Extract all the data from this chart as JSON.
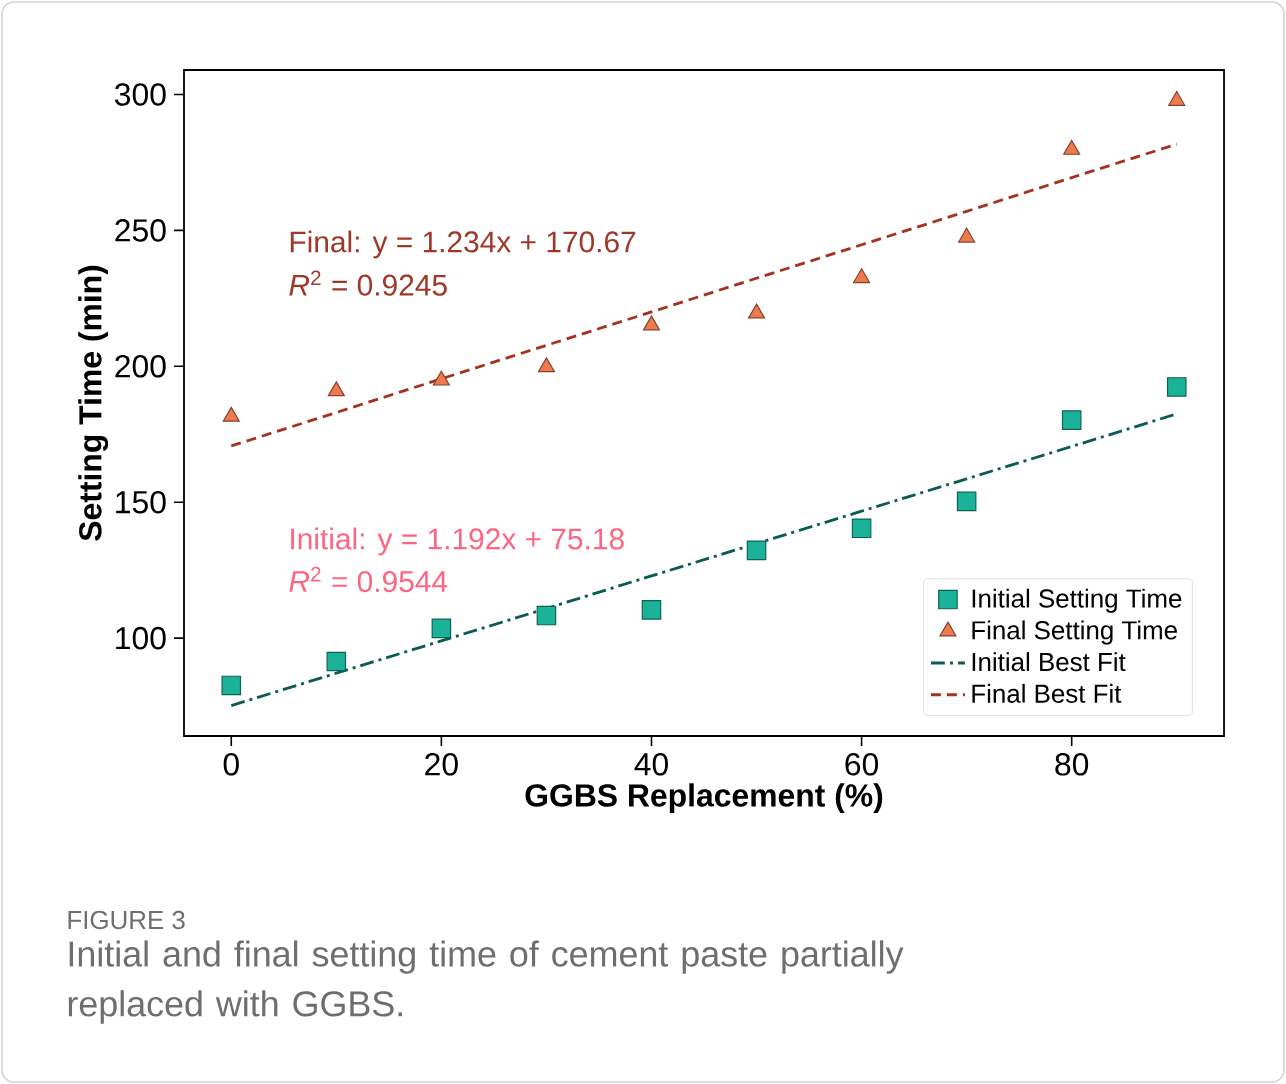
{
  "chart_data": {
    "type": "scatter",
    "xlabel": "GGBS Replacement (%)",
    "ylabel": "Setting Time (min)",
    "x": [
      0,
      10,
      20,
      30,
      40,
      50,
      60,
      70,
      80,
      90
    ],
    "series": [
      {
        "name": "Initial Setting Time",
        "marker": "square",
        "color": "#1ab39a",
        "values": [
          82.6,
          91.4,
          103.6,
          108.3,
          110.4,
          132.3,
          140.4,
          150.3,
          180.2,
          192.4
        ]
      },
      {
        "name": "Final Setting Time",
        "marker": "triangle",
        "color": "#f07a4f",
        "values": [
          181.5,
          190.9,
          194.8,
          199.7,
          215.1,
          219.5,
          232.5,
          247.4,
          279.7,
          297.7
        ]
      },
      {
        "name": "Initial Best Fit",
        "type": "line",
        "marker": "none",
        "line_style": "dashdot",
        "color": "#0b5a55",
        "values": [
          75.2,
          87.1,
          99.0,
          110.9,
          122.9,
          134.8,
          146.7,
          158.6,
          170.5,
          182.5
        ]
      },
      {
        "name": "Final Best Fit",
        "type": "line",
        "marker": "none",
        "line_style": "dashed",
        "color": "#a5321e",
        "values": [
          170.7,
          183.0,
          195.4,
          207.7,
          220.0,
          232.4,
          244.7,
          257.0,
          269.4,
          281.7
        ]
      }
    ],
    "xlim": [
      -4.5,
      94.5
    ],
    "ylim": [
      64,
      309
    ],
    "xticks": [
      0,
      20,
      40,
      60,
      80
    ],
    "yticks": [
      100,
      150,
      200,
      250,
      300
    ],
    "grid": false,
    "legend": "bottom right",
    "annotations": [
      "Final: y = 1.234x + 170.67",
      "*R*$^{2}$ = 0.9245",
      "Initial: y = 1.192x + 75.18",
      "*R*$^{2}$ = 0.9544",
      "FIGURE 3",
      "Initial and final setting time of cement paste partially replaced with GGBS."
    ]
  }
}
